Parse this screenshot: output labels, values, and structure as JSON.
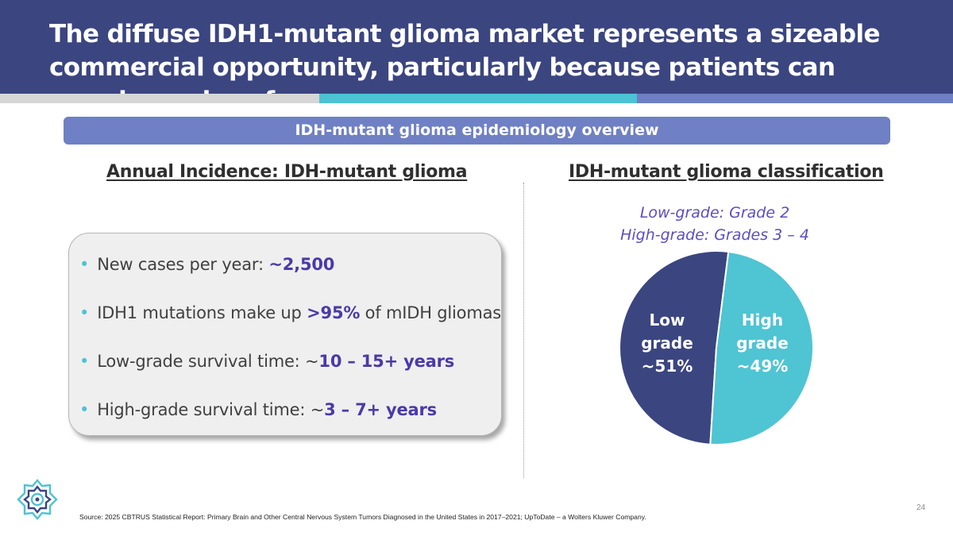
{
  "header": {
    "title": "The diffuse IDH1-mutant glioma market represents a sizeable commercial opportunity, particularly because patients can remain on drug for years"
  },
  "banner": {
    "label": "IDH-mutant glioma epidemiology overview"
  },
  "left": {
    "heading": "Annual Incidence: IDH-mutant glioma",
    "bullets": [
      {
        "prefix": "New cases per year: ",
        "highlight": "~2,500",
        "suffix": ""
      },
      {
        "prefix": "IDH1 mutations make up ",
        "highlight": ">95%",
        "suffix": " of mIDH gliomas"
      },
      {
        "prefix": "Low-grade survival time: ~",
        "highlight": "10 – 15+ years",
        "suffix": ""
      },
      {
        "prefix": "High-grade survival time: ~",
        "highlight": "3 – 7+ years",
        "suffix": ""
      }
    ]
  },
  "right": {
    "heading": "IDH-mutant glioma classification",
    "classification": [
      "Low-grade: Grade 2",
      "High-grade: Grades 3 – 4"
    ]
  },
  "chart_data": {
    "type": "pie",
    "slices": [
      {
        "label_lines": [
          "Low",
          "grade",
          "~51%"
        ],
        "value": 51,
        "color": "#3b4580"
      },
      {
        "label_lines": [
          "High",
          "grade",
          "~49%"
        ],
        "value": 49,
        "color": "#4fc4d3"
      }
    ]
  },
  "colors": {
    "header": "#3b4580",
    "teal": "#4cc3d2",
    "periwinkle": "#6f80c4",
    "highlight": "#4a3aa8"
  },
  "footer": {
    "page_number": "24",
    "source": "Source:  2025 CBTRUS Statistical Report: Primary Brain and Other Central Nervous System Tumors Diagnosed in the United States in 2017–2021; UpToDate – a Wolters Kluwer Company."
  }
}
